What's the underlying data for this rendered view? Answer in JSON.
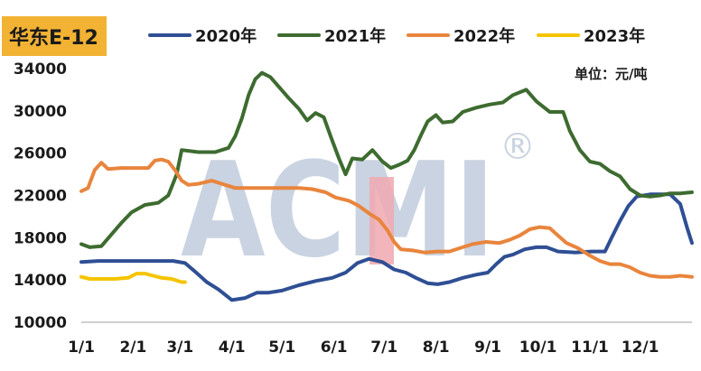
{
  "chart_data": {
    "type": "line",
    "title": "华东E-12",
    "unit_label": "单位：元/吨",
    "watermark": "ACMI",
    "watermark_mark": "®",
    "ylim": [
      10000,
      34000
    ],
    "yticks": [
      10000,
      14000,
      18000,
      22000,
      26000,
      30000,
      34000
    ],
    "ytick_labels": [
      "10000",
      "14000",
      "18000",
      "22000",
      "26000",
      "30000",
      "34000"
    ],
    "xlim": [
      0,
      365
    ],
    "xticks": [
      0,
      31,
      59,
      90,
      120,
      151,
      181,
      212,
      243,
      273,
      304,
      334
    ],
    "xtick_labels": [
      "1/1",
      "2/1",
      "3/1",
      "4/1",
      "5/1",
      "6/1",
      "7/1",
      "8/1",
      "9/1",
      "10/1",
      "11/1",
      "12/1"
    ],
    "legend_position": "top",
    "series": [
      {
        "name": "2020年",
        "color": "#2f4f94",
        "points": [
          [
            0,
            15700
          ],
          [
            10,
            15800
          ],
          [
            20,
            15800
          ],
          [
            40,
            15800
          ],
          [
            55,
            15800
          ],
          [
            62,
            15600
          ],
          [
            68,
            14800
          ],
          [
            75,
            13800
          ],
          [
            82,
            13100
          ],
          [
            90,
            12100
          ],
          [
            98,
            12300
          ],
          [
            105,
            12800
          ],
          [
            112,
            12800
          ],
          [
            120,
            13000
          ],
          [
            130,
            13500
          ],
          [
            140,
            13900
          ],
          [
            150,
            14200
          ],
          [
            158,
            14700
          ],
          [
            165,
            15600
          ],
          [
            172,
            16000
          ],
          [
            180,
            15700
          ],
          [
            187,
            15000
          ],
          [
            194,
            14700
          ],
          [
            200,
            14200
          ],
          [
            207,
            13700
          ],
          [
            213,
            13600
          ],
          [
            220,
            13800
          ],
          [
            228,
            14200
          ],
          [
            236,
            14500
          ],
          [
            243,
            14700
          ],
          [
            248,
            15500
          ],
          [
            253,
            16200
          ],
          [
            258,
            16400
          ],
          [
            265,
            16900
          ],
          [
            272,
            17100
          ],
          [
            278,
            17100
          ],
          [
            285,
            16700
          ],
          [
            295,
            16600
          ],
          [
            305,
            16700
          ],
          [
            313,
            16700
          ],
          [
            317,
            18000
          ],
          [
            322,
            19600
          ],
          [
            327,
            21000
          ],
          [
            332,
            21900
          ],
          [
            340,
            22100
          ],
          [
            352,
            22100
          ],
          [
            358,
            21200
          ],
          [
            362,
            19000
          ],
          [
            365,
            17500
          ]
        ]
      },
      {
        "name": "2021年",
        "color": "#3d6b30",
        "points": [
          [
            0,
            17400
          ],
          [
            5,
            17100
          ],
          [
            12,
            17200
          ],
          [
            18,
            18300
          ],
          [
            24,
            19400
          ],
          [
            30,
            20400
          ],
          [
            38,
            21100
          ],
          [
            46,
            21300
          ],
          [
            52,
            22000
          ],
          [
            57,
            24000
          ],
          [
            60,
            26300
          ],
          [
            70,
            26100
          ],
          [
            80,
            26100
          ],
          [
            88,
            26500
          ],
          [
            92,
            27600
          ],
          [
            96,
            29300
          ],
          [
            100,
            31500
          ],
          [
            104,
            33000
          ],
          [
            108,
            33600
          ],
          [
            113,
            33200
          ],
          [
            118,
            32300
          ],
          [
            124,
            31200
          ],
          [
            130,
            30200
          ],
          [
            135,
            29100
          ],
          [
            140,
            29800
          ],
          [
            145,
            29400
          ],
          [
            149,
            27600
          ],
          [
            154,
            25500
          ],
          [
            158,
            24000
          ],
          [
            162,
            25500
          ],
          [
            168,
            25400
          ],
          [
            174,
            26300
          ],
          [
            180,
            25200
          ],
          [
            185,
            24600
          ],
          [
            190,
            24900
          ],
          [
            195,
            25300
          ],
          [
            199,
            26300
          ],
          [
            203,
            27700
          ],
          [
            207,
            29000
          ],
          [
            212,
            29600
          ],
          [
            216,
            28900
          ],
          [
            222,
            29000
          ],
          [
            228,
            29900
          ],
          [
            236,
            30300
          ],
          [
            244,
            30600
          ],
          [
            252,
            30800
          ],
          [
            258,
            31500
          ],
          [
            266,
            32000
          ],
          [
            272,
            30900
          ],
          [
            280,
            29900
          ],
          [
            288,
            29900
          ],
          [
            292,
            28100
          ],
          [
            298,
            26300
          ],
          [
            304,
            25200
          ],
          [
            310,
            25000
          ],
          [
            316,
            24300
          ],
          [
            322,
            23800
          ],
          [
            328,
            22600
          ],
          [
            334,
            22000
          ],
          [
            340,
            21900
          ],
          [
            346,
            22000
          ],
          [
            352,
            22200
          ],
          [
            358,
            22200
          ],
          [
            365,
            22300
          ]
        ]
      },
      {
        "name": "2022年",
        "color": "#e8853d",
        "points": [
          [
            0,
            22400
          ],
          [
            4,
            22700
          ],
          [
            8,
            24400
          ],
          [
            12,
            25100
          ],
          [
            16,
            24500
          ],
          [
            24,
            24600
          ],
          [
            32,
            24600
          ],
          [
            40,
            24600
          ],
          [
            44,
            25300
          ],
          [
            48,
            25400
          ],
          [
            52,
            25200
          ],
          [
            56,
            24400
          ],
          [
            60,
            23400
          ],
          [
            64,
            23000
          ],
          [
            70,
            23100
          ],
          [
            78,
            23400
          ],
          [
            86,
            23000
          ],
          [
            92,
            22700
          ],
          [
            98,
            22700
          ],
          [
            110,
            22700
          ],
          [
            120,
            22700
          ],
          [
            130,
            22700
          ],
          [
            138,
            22600
          ],
          [
            146,
            22300
          ],
          [
            152,
            21800
          ],
          [
            160,
            21500
          ],
          [
            166,
            21000
          ],
          [
            172,
            20300
          ],
          [
            178,
            19700
          ],
          [
            183,
            18700
          ],
          [
            187,
            17600
          ],
          [
            191,
            16900
          ],
          [
            198,
            16800
          ],
          [
            205,
            16600
          ],
          [
            213,
            16700
          ],
          [
            220,
            16700
          ],
          [
            226,
            17000
          ],
          [
            234,
            17400
          ],
          [
            242,
            17600
          ],
          [
            250,
            17500
          ],
          [
            256,
            17800
          ],
          [
            262,
            18200
          ],
          [
            268,
            18800
          ],
          [
            274,
            19000
          ],
          [
            280,
            18900
          ],
          [
            285,
            18200
          ],
          [
            290,
            17500
          ],
          [
            297,
            17000
          ],
          [
            303,
            16400
          ],
          [
            310,
            15800
          ],
          [
            316,
            15500
          ],
          [
            322,
            15500
          ],
          [
            328,
            15200
          ],
          [
            334,
            14700
          ],
          [
            340,
            14400
          ],
          [
            346,
            14300
          ],
          [
            352,
            14300
          ],
          [
            358,
            14400
          ],
          [
            365,
            14300
          ]
        ]
      },
      {
        "name": "2023年",
        "color": "#f5c400",
        "points": [
          [
            0,
            14300
          ],
          [
            5,
            14100
          ],
          [
            12,
            14100
          ],
          [
            20,
            14100
          ],
          [
            28,
            14200
          ],
          [
            33,
            14600
          ],
          [
            38,
            14600
          ],
          [
            43,
            14400
          ],
          [
            48,
            14200
          ],
          [
            54,
            14100
          ],
          [
            60,
            13800
          ],
          [
            62,
            13800
          ]
        ]
      }
    ]
  }
}
